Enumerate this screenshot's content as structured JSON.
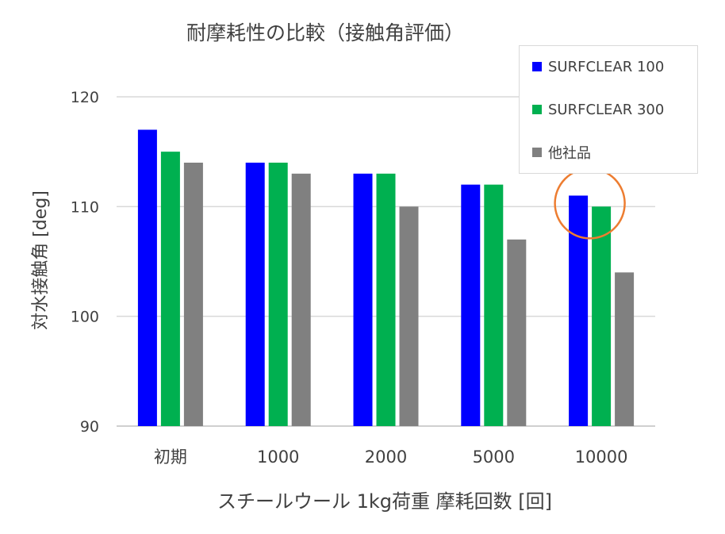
{
  "chart_data": {
    "type": "bar",
    "title": "耐摩耗性の比較（接触角評価）",
    "xlabel": "スチールウール 1kg荷重 摩耗回数 [回]",
    "ylabel": "対水接触角 [deg]",
    "categories": [
      "初期",
      "1000",
      "2000",
      "5000",
      "10000"
    ],
    "ylim": [
      90,
      120
    ],
    "yticks": [
      90,
      100,
      110,
      120
    ],
    "grid": true,
    "legend_position": "top-right",
    "series": [
      {
        "name": "SURFCLEAR 100",
        "color": "#0000ff",
        "values": [
          117,
          114,
          113,
          112,
          111
        ]
      },
      {
        "name": "SURFCLEAR 300",
        "color": "#00b050",
        "values": [
          115,
          114,
          113,
          112,
          110
        ]
      },
      {
        "name": "他社品",
        "color": "#808080",
        "values": [
          114,
          113,
          110,
          107,
          104
        ]
      }
    ],
    "annotations": [
      {
        "type": "circle",
        "color": "#ed7d31",
        "category": "10000",
        "series": [
          "SURFCLEAR 100",
          "SURFCLEAR 300"
        ]
      }
    ]
  }
}
